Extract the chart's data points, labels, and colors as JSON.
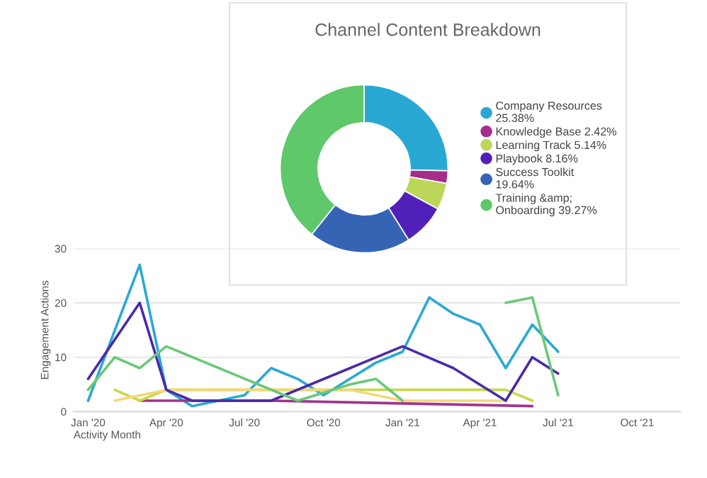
{
  "chart_data": [
    {
      "type": "line",
      "xlabel": "Activity Month",
      "ylabel": "Engagement Actions",
      "ylim": [
        0,
        30
      ],
      "yticks": [
        0,
        10,
        20,
        30
      ],
      "xlim": [
        "2019-12-15",
        "2021-11-20"
      ],
      "xticks": [
        {
          "value": "2020-01",
          "label": "Jan '20"
        },
        {
          "value": "2020-04",
          "label": "Apr '20"
        },
        {
          "value": "2020-07",
          "label": "Jul '20"
        },
        {
          "value": "2020-10",
          "label": "Oct '20"
        },
        {
          "value": "2021-01",
          "label": "Jan '21"
        },
        {
          "value": "2021-04",
          "label": "Apr '21"
        },
        {
          "value": "2021-07",
          "label": "Jul '21"
        },
        {
          "value": "2021-10",
          "label": "Oct '21"
        }
      ],
      "grid": "y",
      "legend": false,
      "series": [
        {
          "color": "#2aa9d2",
          "x": [
            "2020-01",
            "2020-03",
            "2020-04",
            "2020-05",
            "2020-07",
            "2020-08",
            "2020-09",
            "2020-10",
            "2020-12",
            "2021-01",
            "2021-02",
            "2021-03",
            "2021-04",
            "2021-05",
            "2021-06",
            "2021-07"
          ],
          "values": [
            2,
            27,
            4,
            1,
            3,
            8,
            6,
            3,
            9,
            11,
            21,
            18,
            16,
            8,
            16,
            11
          ]
        },
        {
          "color": "#a3338c",
          "x": [
            "2020-03",
            "2020-08",
            "2021-06"
          ],
          "values": [
            2,
            2,
            1
          ]
        },
        {
          "color": "#c8d84a",
          "x": [
            "2020-02",
            "2020-03",
            "2020-04",
            "2021-05",
            "2021-06"
          ],
          "values": [
            4,
            2,
            4,
            4,
            2
          ]
        },
        {
          "color": "#f2d77a",
          "x": [
            "2020-02",
            "2020-04",
            "2020-11",
            "2021-01",
            "2021-05"
          ],
          "values": [
            2,
            4,
            4,
            2,
            2
          ]
        },
        {
          "color": "#4b2aa8",
          "x": [
            "2020-01",
            "2020-03",
            "2020-04",
            "2020-05",
            "2020-08",
            "2021-01",
            "2021-03",
            "2021-05",
            "2021-06",
            "2021-07"
          ],
          "values": [
            6,
            20,
            4,
            2,
            2,
            12,
            8,
            2,
            10,
            7
          ]
        },
        {
          "color": "#6cc878",
          "x": [
            "2020-01",
            "2020-02",
            "2020-03",
            "2020-04",
            "2020-09",
            "2020-11",
            "2020-12",
            "2021-01",
            "2021-02",
            "2021-05",
            "2021-06",
            "2021-07"
          ],
          "values": [
            4,
            10,
            8,
            12,
            2,
            5,
            6,
            2,
            null,
            20,
            21,
            3
          ]
        }
      ]
    },
    {
      "type": "donut",
      "title": "Channel Content Breakdown",
      "legend": "right",
      "categories": [
        "Company Resources",
        "Knowledge Base",
        "Learning Track",
        "Playbook",
        "Success Toolkit",
        "Training &amp; Onboarding"
      ],
      "values": [
        25.38,
        2.42,
        5.14,
        8.16,
        19.64,
        39.27
      ],
      "value_labels": [
        "25.38%",
        "2.42%",
        "5.14%",
        "8.16%",
        "19.64%",
        "39.27%"
      ],
      "colors": [
        "#29a8d4",
        "#a52e8a",
        "#bcd65a",
        "#5120b8",
        "#3564b5",
        "#5ec86a"
      ]
    }
  ]
}
